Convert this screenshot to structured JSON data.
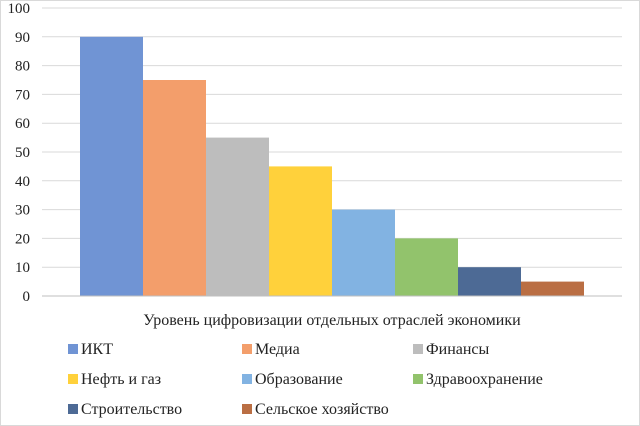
{
  "chart_data": {
    "type": "bar",
    "title": "",
    "xlabel": "Уровень цифровизации отдельных отраслей экономики",
    "ylabel": "",
    "ylim": [
      0,
      100
    ],
    "yticks": [
      0,
      10,
      20,
      30,
      40,
      50,
      60,
      70,
      80,
      90,
      100
    ],
    "grid": true,
    "legend": "bottom",
    "series": [
      {
        "name": "ИКТ",
        "value": 90,
        "color": "#7094d4"
      },
      {
        "name": "Медиа",
        "value": 75,
        "color": "#f39e6b"
      },
      {
        "name": "Финансы",
        "value": 55,
        "color": "#bdbdbd"
      },
      {
        "name": "Нефть и газ",
        "value": 45,
        "color": "#ffd13b"
      },
      {
        "name": "Образование",
        "value": 30,
        "color": "#82b3e2"
      },
      {
        "name": "Здравоохранение",
        "value": 20,
        "color": "#92c36c"
      },
      {
        "name": "Строительство",
        "value": 10,
        "color": "#4d6a95"
      },
      {
        "name": "Сельское хозяйство",
        "value": 5,
        "color": "#ba6e43"
      }
    ]
  }
}
